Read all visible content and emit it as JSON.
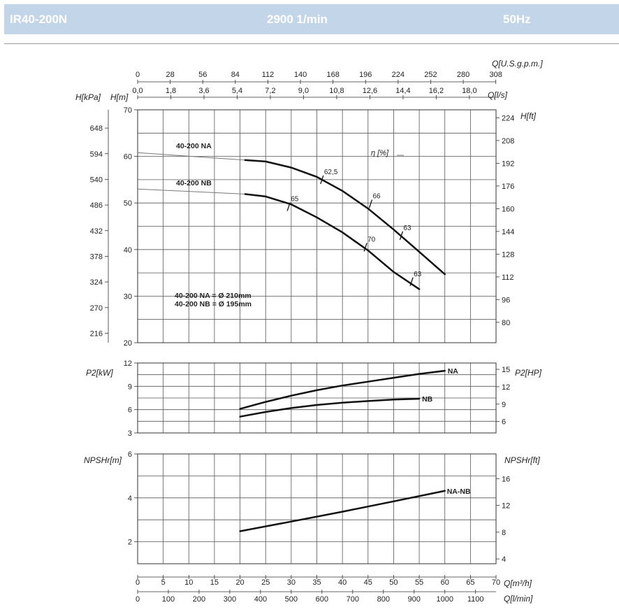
{
  "header": {
    "model": "IR40-200N",
    "speed": "2900 1/min",
    "frequency": "50Hz",
    "colors": {
      "band": "#c3d5e9",
      "text": "#ffffff"
    }
  },
  "chart_data": [
    {
      "id": "head",
      "type": "line",
      "xlim": [
        0,
        70
      ],
      "ylim": [
        20,
        70
      ],
      "axes": {
        "left": {
          "label": "H[m]",
          "ticks": [
            "20",
            "30",
            "40",
            "50",
            "60",
            "70"
          ]
        },
        "left2": {
          "label": "H[kPa]",
          "ticks": [
            "216",
            "270",
            "324",
            "378",
            "432",
            "486",
            "540",
            "594",
            "648"
          ]
        },
        "right": {
          "label": "H[ft]",
          "ticks": [
            "80",
            "96",
            "112",
            "128",
            "144",
            "160",
            "176",
            "192",
            "208",
            "224"
          ]
        },
        "top": {
          "label": "Q[l/s]",
          "ticks": [
            "0,0",
            "1,8",
            "3,6",
            "5,4",
            "7,2",
            "9,0",
            "10,8",
            "12,6",
            "14,4",
            "16,2",
            "18,0"
          ]
        },
        "top2": {
          "label": "Q[U.S.g.p.m.]",
          "ticks": [
            "0",
            "28",
            "56",
            "84",
            "112",
            "140",
            "168",
            "196",
            "224",
            "252",
            "280",
            "308"
          ]
        }
      },
      "series": [
        {
          "name": "40-200 NA",
          "x": [
            21,
            25,
            30,
            35,
            40,
            45,
            50,
            55,
            60
          ],
          "y": [
            59.2,
            58.9,
            57.6,
            55.6,
            52.6,
            48.8,
            44.3,
            39.5,
            34.7
          ]
        },
        {
          "name": "40-200 NB",
          "x": [
            21,
            25,
            30,
            35,
            40,
            45,
            50,
            55
          ],
          "y": [
            51.9,
            51.4,
            49.7,
            46.9,
            43.7,
            39.8,
            35.2,
            31.5
          ]
        }
      ],
      "extensions": [
        {
          "x": [
            0,
            21
          ],
          "y": [
            60.8,
            59.2
          ]
        },
        {
          "x": [
            0,
            21
          ],
          "y": [
            53.0,
            51.9
          ]
        }
      ],
      "efficiency": {
        "label": "η [%]",
        "marks": [
          {
            "label": "62,5",
            "x": 36.0,
            "y": 55.0
          },
          {
            "label": "66",
            "x": 45.5,
            "y": 49.8
          },
          {
            "label": "63",
            "x": 51.5,
            "y": 43.0
          },
          {
            "label": "65",
            "x": 29.5,
            "y": 49.2
          },
          {
            "label": "70",
            "x": 44.5,
            "y": 40.5
          },
          {
            "label": "63",
            "x": 53.5,
            "y": 33.1
          }
        ]
      },
      "annotations": [
        "40-200 NA = Ø 210mm",
        "40-200 NB = Ø 195mm"
      ],
      "grid": true
    },
    {
      "id": "power",
      "type": "line",
      "xlim": [
        0,
        70
      ],
      "ylim": [
        3,
        12
      ],
      "axes": {
        "left": {
          "label": "P2[kW]",
          "ticks": [
            "3",
            "6",
            "9",
            "12"
          ]
        },
        "right": {
          "label": "P2[HP]",
          "ticks": [
            "6",
            "9",
            "12",
            "15"
          ]
        }
      },
      "series": [
        {
          "name": "NA",
          "x": [
            20,
            25,
            30,
            35,
            40,
            45,
            50,
            55,
            60
          ],
          "y": [
            6.1,
            7.0,
            7.8,
            8.5,
            9.1,
            9.6,
            10.1,
            10.6,
            11.0
          ]
        },
        {
          "name": "NB",
          "x": [
            20,
            25,
            30,
            35,
            40,
            45,
            50,
            55
          ],
          "y": [
            5.1,
            5.7,
            6.2,
            6.6,
            6.9,
            7.1,
            7.3,
            7.4
          ]
        }
      ],
      "grid": true
    },
    {
      "id": "npsh",
      "type": "line",
      "xlim": [
        0,
        70
      ],
      "ylim": [
        1,
        6
      ],
      "axes": {
        "left": {
          "label": "NPSHr[m]",
          "ticks": [
            "2",
            "4",
            "6"
          ]
        },
        "right": {
          "label": "NPSHr[ft]",
          "ticks": [
            "4",
            "8",
            "12",
            "16"
          ]
        },
        "bottom": {
          "label": "Q[m³/h]",
          "ticks": [
            "0",
            "5",
            "10",
            "15",
            "20",
            "25",
            "30",
            "35",
            "40",
            "45",
            "50",
            "55",
            "60",
            "65",
            "70"
          ]
        },
        "bottom2": {
          "label": "Q[l/min]",
          "ticks": [
            "0",
            "100",
            "200",
            "300",
            "400",
            "500",
            "600",
            "700",
            "800",
            "900",
            "1000",
            "1100"
          ]
        }
      },
      "series": [
        {
          "name": "NA-NB",
          "x": [
            20,
            30,
            40,
            50,
            60
          ],
          "y": [
            2.48,
            2.92,
            3.37,
            3.84,
            4.32
          ]
        }
      ],
      "grid": true
    }
  ]
}
